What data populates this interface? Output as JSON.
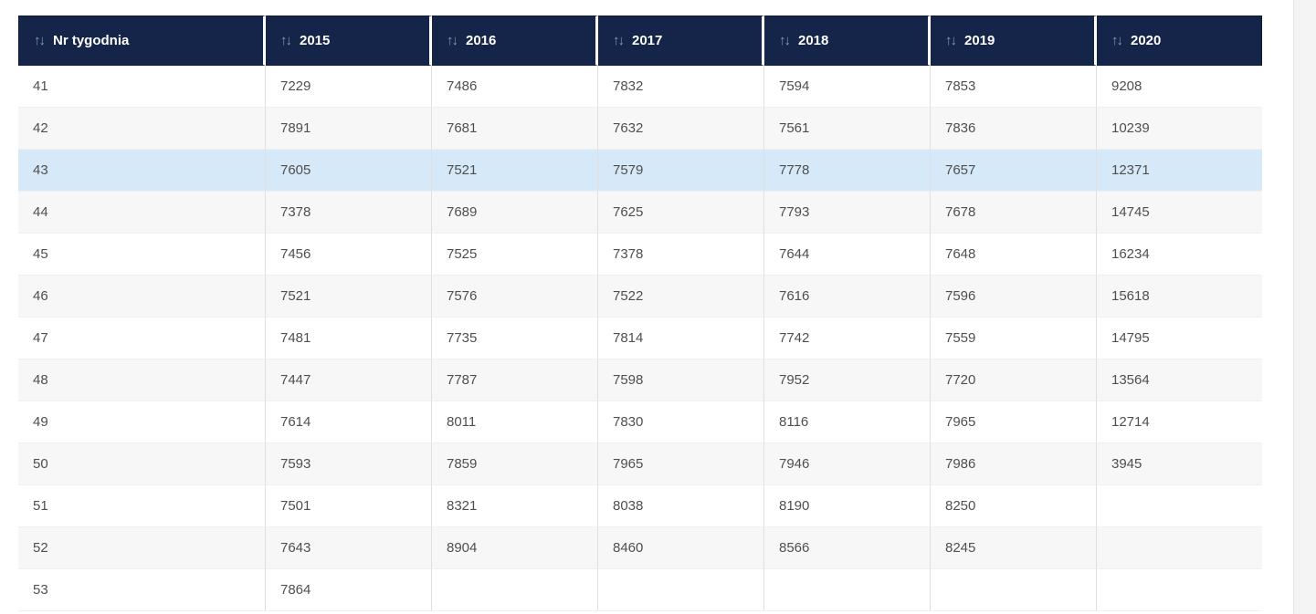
{
  "page": {
    "background": "#ffffff",
    "right_rail_color": "#f4f4f5"
  },
  "icons": {
    "sort_asc": "↑",
    "sort_desc": "↓"
  },
  "colors": {
    "header_bg": "#152549",
    "header_text": "#ffffff",
    "sort_icon": "#8d97ab",
    "cell_text": "#4f4f4f",
    "zebra_stripe": "#f7f7f7",
    "highlight_row": "#d6e9f8",
    "column_divider": "#e0e0e0"
  },
  "table": {
    "columns": [
      {
        "key": "nr-tygodnia",
        "label": "Nr tygodnia",
        "sortable": true
      },
      {
        "key": "2015",
        "label": "2015",
        "sortable": true
      },
      {
        "key": "2016",
        "label": "2016",
        "sortable": true
      },
      {
        "key": "2017",
        "label": "2017",
        "sortable": true
      },
      {
        "key": "2018",
        "label": "2018",
        "sortable": true
      },
      {
        "key": "2019",
        "label": "2019",
        "sortable": true
      },
      {
        "key": "2020",
        "label": "2020",
        "sortable": true
      }
    ],
    "rows": [
      {
        "week": "41",
        "values": [
          "7229",
          "7486",
          "7832",
          "7594",
          "7853",
          "9208"
        ],
        "highlighted": false
      },
      {
        "week": "42",
        "values": [
          "7891",
          "7681",
          "7632",
          "7561",
          "7836",
          "10239"
        ],
        "highlighted": false
      },
      {
        "week": "43",
        "values": [
          "7605",
          "7521",
          "7579",
          "7778",
          "7657",
          "12371"
        ],
        "highlighted": true
      },
      {
        "week": "44",
        "values": [
          "7378",
          "7689",
          "7625",
          "7793",
          "7678",
          "14745"
        ],
        "highlighted": false
      },
      {
        "week": "45",
        "values": [
          "7456",
          "7525",
          "7378",
          "7644",
          "7648",
          "16234"
        ],
        "highlighted": false
      },
      {
        "week": "46",
        "values": [
          "7521",
          "7576",
          "7522",
          "7616",
          "7596",
          "15618"
        ],
        "highlighted": false
      },
      {
        "week": "47",
        "values": [
          "7481",
          "7735",
          "7814",
          "7742",
          "7559",
          "14795"
        ],
        "highlighted": false
      },
      {
        "week": "48",
        "values": [
          "7447",
          "7787",
          "7598",
          "7952",
          "7720",
          "13564"
        ],
        "highlighted": false
      },
      {
        "week": "49",
        "values": [
          "7614",
          "8011",
          "7830",
          "8116",
          "7965",
          "12714"
        ],
        "highlighted": false
      },
      {
        "week": "50",
        "values": [
          "7593",
          "7859",
          "7965",
          "7946",
          "7986",
          "3945"
        ],
        "highlighted": false
      },
      {
        "week": "51",
        "values": [
          "7501",
          "8321",
          "8038",
          "8190",
          "8250",
          ""
        ],
        "highlighted": false
      },
      {
        "week": "52",
        "values": [
          "7643",
          "8904",
          "8460",
          "8566",
          "8245",
          ""
        ],
        "highlighted": false
      },
      {
        "week": "53",
        "values": [
          "7864",
          "",
          "",
          "",
          "",
          ""
        ],
        "highlighted": false
      }
    ]
  }
}
